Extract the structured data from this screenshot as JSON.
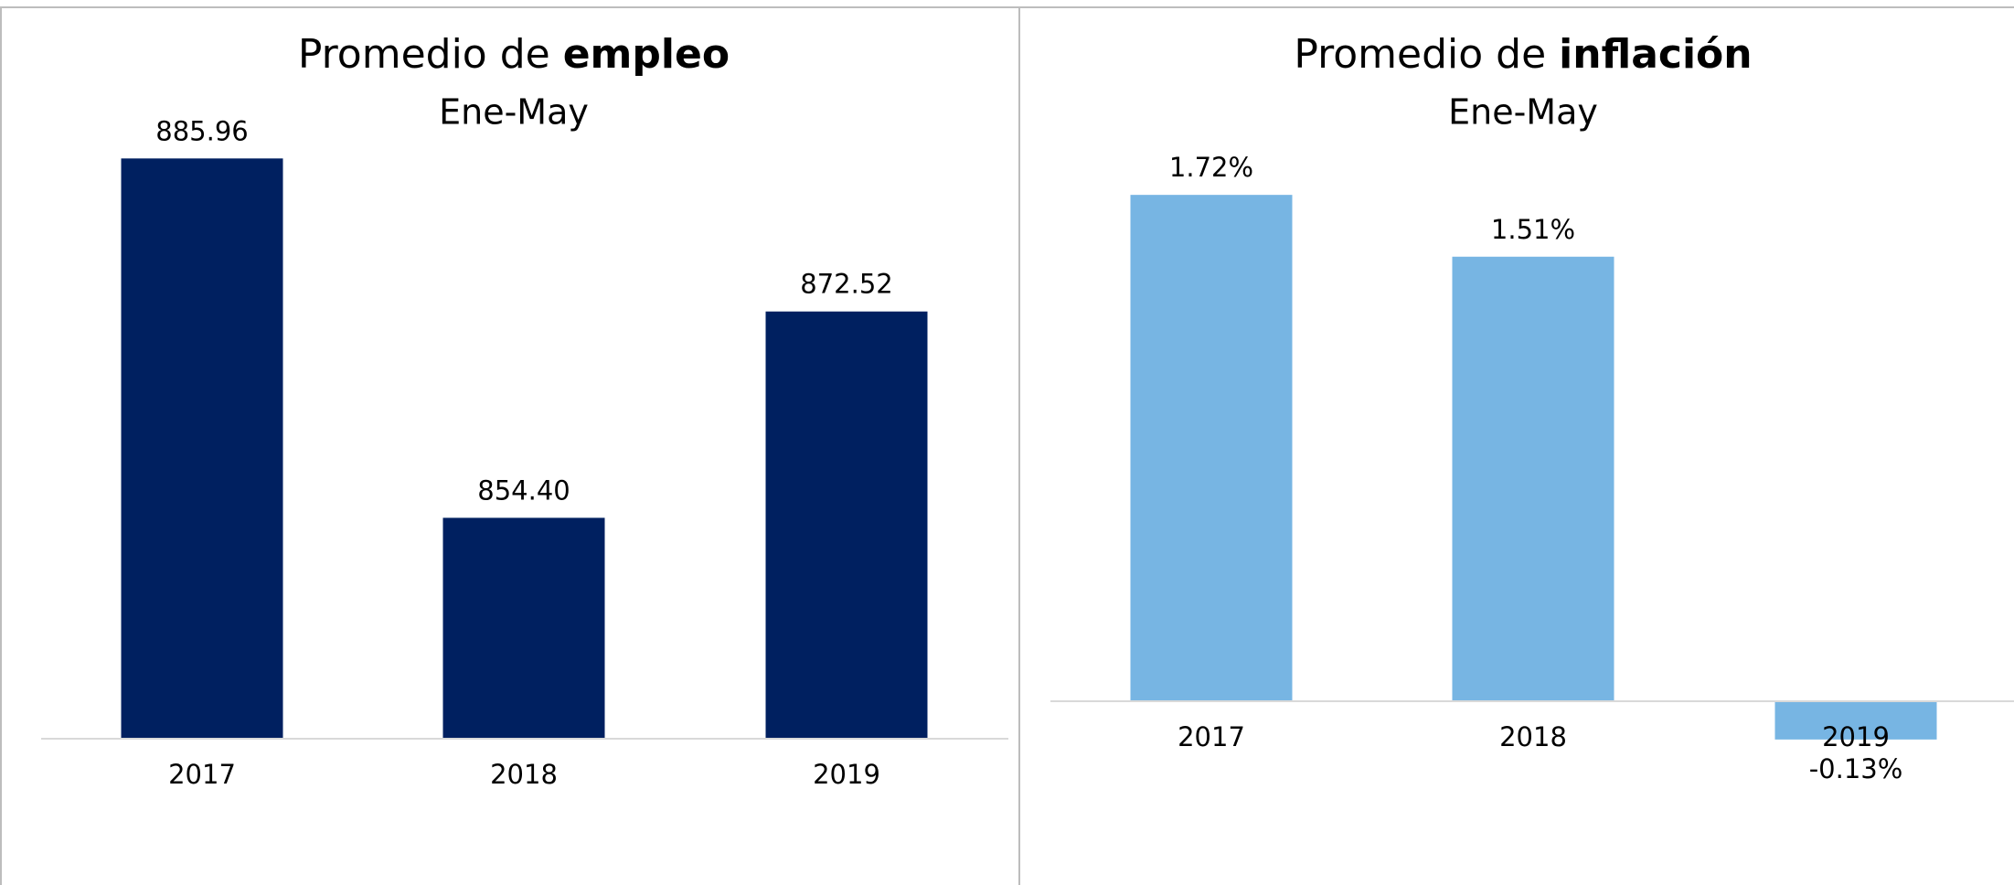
{
  "chart_data": [
    {
      "type": "bar",
      "title": "Promedio de",
      "title_bold": "empleo",
      "subtitle": "Ene-May",
      "categories": [
        "2017",
        "2018",
        "2019"
      ],
      "values": [
        885.96,
        854.4,
        872.52
      ],
      "value_labels": [
        "885.96",
        "854.40",
        "872.52"
      ],
      "color": "#002060",
      "ylim": [
        835,
        890
      ]
    },
    {
      "type": "bar",
      "title": "Promedio de",
      "title_bold": "inflación",
      "subtitle": "Ene-May",
      "categories": [
        "2017",
        "2018",
        "2019"
      ],
      "values": [
        1.72,
        1.51,
        -0.13
      ],
      "value_labels": [
        "1.72%",
        "1.51%",
        "-0.13%"
      ],
      "color": "#77b5e3",
      "ylim": [
        -0.5,
        2.0
      ]
    }
  ]
}
